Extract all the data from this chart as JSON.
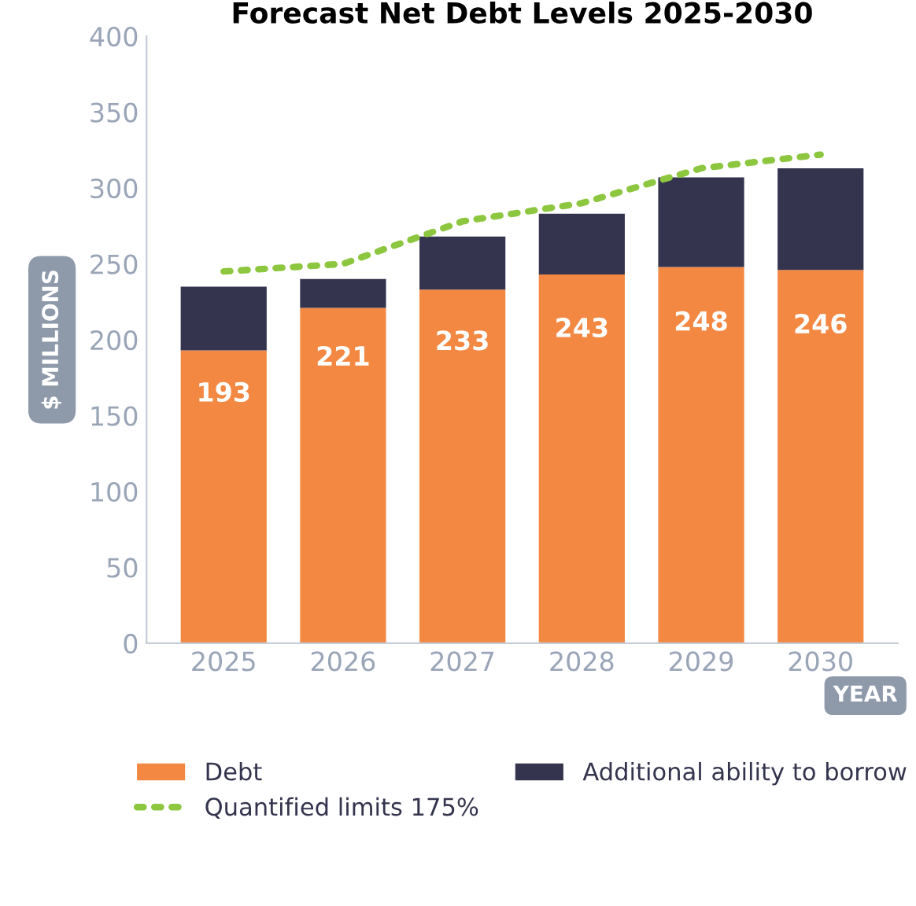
{
  "chart_data": {
    "type": "bar",
    "title": "Forecast Net Debt Levels 2025-2030",
    "xlabel": "YEAR",
    "ylabel": "$ MILLIONS",
    "categories": [
      "2025",
      "2026",
      "2027",
      "2028",
      "2029",
      "2030"
    ],
    "stacked": true,
    "series": [
      {
        "name": "Debt",
        "color": "#f38843",
        "values": [
          193,
          221,
          233,
          243,
          248,
          246
        ],
        "value_labels": [
          "193",
          "221",
          "233",
          "243",
          "248",
          "246"
        ]
      },
      {
        "name": "Additional ability to borrow",
        "color": "#34344e",
        "values": [
          42,
          19,
          35,
          40,
          59,
          67
        ]
      },
      {
        "name": "Quantified limits 175%",
        "type": "line",
        "color": "#8dc63f",
        "line_style": "dotted",
        "values": [
          245,
          250,
          278,
          290,
          313,
          322
        ]
      }
    ],
    "ylim": [
      0,
      400
    ],
    "yticks": [
      0,
      50,
      100,
      150,
      200,
      250,
      300,
      350,
      400
    ],
    "grid": false,
    "legend": "bottom",
    "marker": "none"
  }
}
